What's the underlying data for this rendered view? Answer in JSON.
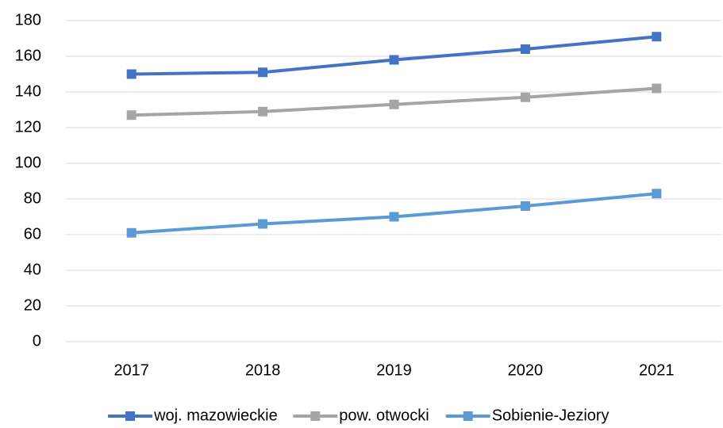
{
  "chart_data": {
    "type": "line",
    "categories": [
      "2017",
      "2018",
      "2019",
      "2020",
      "2021"
    ],
    "series": [
      {
        "name": "woj. mazowieckie",
        "color": "#4472c4",
        "values": [
          150,
          151,
          158,
          164,
          171
        ]
      },
      {
        "name": "pow. otwocki",
        "color": "#a5a5a5",
        "values": [
          127,
          129,
          133,
          137,
          142
        ]
      },
      {
        "name": "Sobienie-Jeziory",
        "color": "#5b9bd5",
        "values": [
          61,
          66,
          70,
          76,
          83
        ]
      }
    ],
    "ylim": [
      0,
      180
    ],
    "yticks": [
      0,
      20,
      40,
      60,
      80,
      100,
      120,
      140,
      160,
      180
    ],
    "grid": true,
    "legend": "bottom"
  }
}
